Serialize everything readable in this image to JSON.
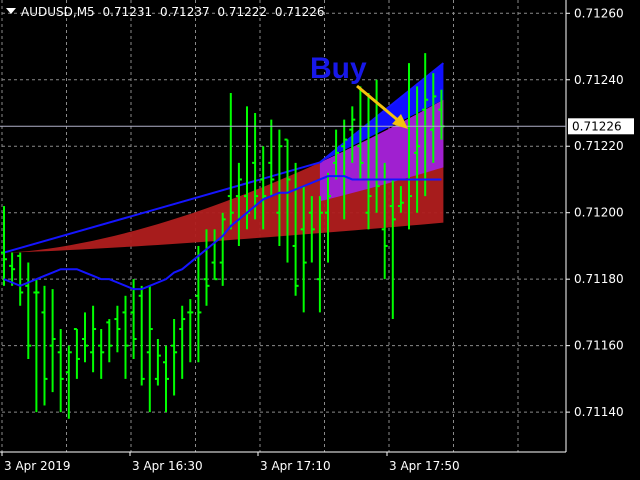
{
  "header": {
    "symbol": "AUDUSD,M5",
    "ohlc": [
      "0.71231",
      "0.71237",
      "0.71222",
      "0.71226"
    ]
  },
  "annotation": {
    "text": "Buy",
    "color": "#1818e8",
    "arrow_color": "#f4c20d"
  },
  "price_label": {
    "value": "0.71226",
    "price": 0.71226
  },
  "colors": {
    "background": "#000000",
    "grid": "#8a8a8a",
    "axis_text": "#ffffff",
    "candle": "#00ff00",
    "ma": "#1515ff",
    "band_fill": "#b01e1e",
    "band_fill_buy": "#a020d0",
    "band_fill_blue": "#1010ff"
  },
  "chart_data": {
    "type": "ohlc",
    "y_ticks": [
      "0.71260",
      "0.71240",
      "0.71220",
      "0.71200",
      "0.71180",
      "0.71160",
      "0.71140"
    ],
    "x_ticks": [
      "3 Apr 2019",
      "3 Apr 16:30",
      "3 Apr 17:10",
      "3 Apr 17:50"
    ],
    "ylim": [
      0.71128,
      0.71264
    ],
    "grid": true,
    "bars": [
      [
        0.71188,
        0.71202,
        0.71178,
        0.71186
      ],
      [
        0.71184,
        0.71188,
        0.71178,
        0.71183
      ],
      [
        0.71187,
        0.71188,
        0.71172,
        0.71176
      ],
      [
        0.71178,
        0.71185,
        0.71156,
        0.7116
      ],
      [
        0.71176,
        0.7118,
        0.7114,
        0.71176
      ],
      [
        0.7117,
        0.71178,
        0.71142,
        0.7115
      ],
      [
        0.7116,
        0.71177,
        0.71146,
        0.71162
      ],
      [
        0.71158,
        0.71165,
        0.7114,
        0.7115
      ],
      [
        0.71152,
        0.7116,
        0.71138,
        0.71158
      ],
      [
        0.71165,
        0.71165,
        0.7115,
        0.71156
      ],
      [
        0.71162,
        0.7117,
        0.71155,
        0.7116
      ],
      [
        0.71158,
        0.71172,
        0.71152,
        0.71165
      ],
      [
        0.7116,
        0.71165,
        0.7115,
        0.71158
      ],
      [
        0.71167,
        0.71168,
        0.71155,
        0.7116
      ],
      [
        0.71168,
        0.71172,
        0.71158,
        0.71165
      ],
      [
        0.7117,
        0.71175,
        0.7115,
        0.7116
      ],
      [
        0.7117,
        0.7118,
        0.71156,
        0.71162
      ],
      [
        0.71175,
        0.71178,
        0.71148,
        0.7115
      ],
      [
        0.71158,
        0.71178,
        0.7114,
        0.71165
      ],
      [
        0.7115,
        0.71162,
        0.71148,
        0.71157
      ],
      [
        0.71155,
        0.7116,
        0.7114,
        0.7115
      ],
      [
        0.7116,
        0.71168,
        0.71145,
        0.71158
      ],
      [
        0.71165,
        0.71172,
        0.7115,
        0.71168
      ],
      [
        0.7117,
        0.71174,
        0.71155,
        0.7117
      ],
      [
        0.71175,
        0.7119,
        0.71155,
        0.7117
      ],
      [
        0.7118,
        0.71195,
        0.71172,
        0.71178
      ],
      [
        0.71185,
        0.71195,
        0.7118,
        0.7118
      ],
      [
        0.71185,
        0.712,
        0.71178,
        0.71198
      ],
      [
        0.71205,
        0.71236,
        0.71195,
        0.712
      ],
      [
        0.71205,
        0.71215,
        0.7119,
        0.7121
      ],
      [
        0.71205,
        0.71232,
        0.71195,
        0.712
      ],
      [
        0.71215,
        0.7123,
        0.71198,
        0.71205
      ],
      [
        0.7121,
        0.7122,
        0.71195,
        0.71205
      ],
      [
        0.71215,
        0.71228,
        0.71205,
        0.7121
      ],
      [
        0.712,
        0.71225,
        0.7119,
        0.7122
      ],
      [
        0.71222,
        0.71222,
        0.71185,
        0.7121
      ],
      [
        0.7119,
        0.71215,
        0.71175,
        0.71178
      ],
      [
        0.71195,
        0.71208,
        0.7117,
        0.71185
      ],
      [
        0.712,
        0.71205,
        0.71185,
        0.71195
      ],
      [
        0.7118,
        0.71205,
        0.7117,
        0.712
      ],
      [
        0.712,
        0.71212,
        0.71185,
        0.71205
      ],
      [
        0.71215,
        0.71225,
        0.7121,
        0.71218
      ],
      [
        0.7122,
        0.71228,
        0.71198,
        0.71222
      ],
      [
        0.71225,
        0.71232,
        0.71215,
        0.71228
      ],
      [
        0.7122,
        0.71238,
        0.7121,
        0.71215
      ],
      [
        0.712,
        0.71236,
        0.71195,
        0.71205
      ],
      [
        0.7121,
        0.7124,
        0.712,
        0.71208
      ],
      [
        0.71195,
        0.71215,
        0.7118,
        0.7119
      ],
      [
        0.71202,
        0.7121,
        0.71168,
        0.71198
      ],
      [
        0.71202,
        0.71208,
        0.712,
        0.71203
      ],
      [
        0.7121,
        0.71245,
        0.71195,
        0.71205
      ],
      [
        0.71218,
        0.71238,
        0.712,
        0.7122
      ],
      [
        0.71231,
        0.71248,
        0.71205,
        0.71234
      ],
      [
        0.71225,
        0.71242,
        0.71215,
        0.71235
      ],
      [
        0.71231,
        0.71237,
        0.71222,
        0.71226
      ]
    ],
    "ma_line": [
      0.7118,
      0.71179,
      0.71178,
      0.71179,
      0.7118,
      0.71181,
      0.71182,
      0.71183,
      0.71183,
      0.71183,
      0.71182,
      0.71181,
      0.7118,
      0.7118,
      0.71179,
      0.71178,
      0.71177,
      0.71177,
      0.71178,
      0.71179,
      0.7118,
      0.71182,
      0.71183,
      0.71185,
      0.71187,
      0.71189,
      0.71191,
      0.71193,
      0.71196,
      0.71198,
      0.712,
      0.71202,
      0.71204,
      0.71205,
      0.71206,
      0.71206,
      0.71207,
      0.71208,
      0.71209,
      0.7121,
      0.71211,
      0.71211,
      0.71211,
      0.7121,
      0.7121,
      0.7121,
      0.7121,
      0.7121,
      0.7121,
      0.7121,
      0.7121,
      0.7121,
      0.7121,
      0.7121,
      0.7121
    ],
    "band_upper_start": 0.71188,
    "band_upper_end": 0.71234,
    "band_lower_start": 0.71188,
    "band_lower_end": 0.71197,
    "fast_line_start": 0.71188,
    "fast_line_end": 0.71245
  }
}
